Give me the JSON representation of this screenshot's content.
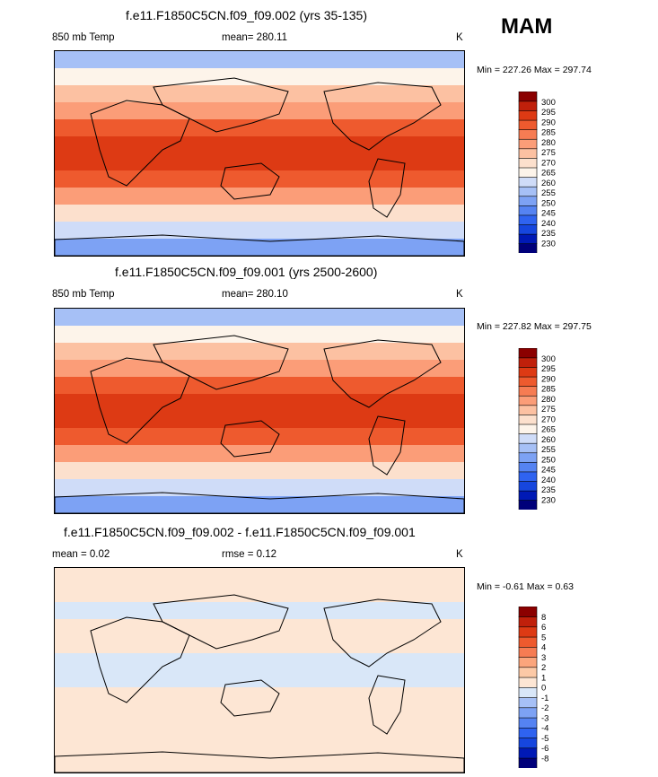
{
  "season": "MAM",
  "colors": {
    "continent_outline": "#000000",
    "missing": "#ffffff"
  },
  "panels": [
    {
      "title": "f.e11.F1850C5CN.f09_f09.002 (yrs 35-135)",
      "left_label": "850 mb Temp",
      "center_label": "mean= 280.11",
      "units": "K",
      "minmax": "Min = 227.26 Max = 297.74"
    },
    {
      "title": "f.e11.F1850C5CN.f09_f09.001 (yrs 2500-2600)",
      "left_label": "850 mb Temp",
      "center_label": "mean= 280.10",
      "units": "K",
      "minmax": "Min = 227.82 Max = 297.75"
    },
    {
      "title": "f.e11.F1850C5CN.f09_f09.002 - f.e11.F1850C5CN.f09_f09.001",
      "left_label": "mean =   0.02",
      "center_label": "rmse =   0.12",
      "units": "K",
      "minmax": "Min =  -0.61 Max =   0.63"
    }
  ],
  "chart_data": [
    {
      "type": "heatmap",
      "title": "f.e11.F1850C5CN.f09_f09.002 (yrs 35-135)",
      "field": "850 mb Temp",
      "units": "K",
      "mean": 280.11,
      "min": 227.26,
      "max": 297.74,
      "levels": [
        230,
        235,
        240,
        245,
        250,
        255,
        260,
        265,
        270,
        275,
        280,
        285,
        290,
        295,
        300
      ],
      "colorbar_colors": [
        "#00007a",
        "#0019b5",
        "#1646de",
        "#2f63f0",
        "#5583f2",
        "#7da2f4",
        "#a6c0f6",
        "#cfdcf8",
        "#fdf4ea",
        "#fce0cd",
        "#fcc1a2",
        "#fb9d78",
        "#f67c53",
        "#ee5a2e",
        "#dd3a14",
        "#c0200b",
        "#8b0000"
      ],
      "zonal_mean_profile": {
        "lat": [
          90,
          75,
          60,
          45,
          30,
          15,
          0,
          -15,
          -30,
          -45,
          -60,
          -75,
          -90
        ],
        "value": [
          252,
          257,
          266,
          275,
          284,
          289,
          291,
          289,
          283,
          273,
          263,
          250,
          245
        ]
      }
    },
    {
      "type": "heatmap",
      "title": "f.e11.F1850C5CN.f09_f09.001 (yrs 2500-2600)",
      "field": "850 mb Temp",
      "units": "K",
      "mean": 280.1,
      "min": 227.82,
      "max": 297.75,
      "levels": [
        230,
        235,
        240,
        245,
        250,
        255,
        260,
        265,
        270,
        275,
        280,
        285,
        290,
        295,
        300
      ],
      "colorbar_colors": [
        "#00007a",
        "#0019b5",
        "#1646de",
        "#2f63f0",
        "#5583f2",
        "#7da2f4",
        "#a6c0f6",
        "#cfdcf8",
        "#fdf4ea",
        "#fce0cd",
        "#fcc1a2",
        "#fb9d78",
        "#f67c53",
        "#ee5a2e",
        "#dd3a14",
        "#c0200b",
        "#8b0000"
      ],
      "zonal_mean_profile": {
        "lat": [
          90,
          75,
          60,
          45,
          30,
          15,
          0,
          -15,
          -30,
          -45,
          -60,
          -75,
          -90
        ],
        "value": [
          252,
          257,
          266,
          275,
          284,
          289,
          291,
          289,
          283,
          273,
          263,
          250,
          245
        ]
      }
    },
    {
      "type": "heatmap",
      "title": "f.e11.F1850C5CN.f09_f09.002 - f.e11.F1850C5CN.f09_f09.001",
      "field": "difference",
      "units": "K",
      "mean": 0.02,
      "rmse": 0.12,
      "min": -0.61,
      "max": 0.63,
      "levels": [
        -8,
        -6,
        -5,
        -4,
        -3,
        -2,
        -1,
        0,
        1,
        2,
        3,
        4,
        5,
        6,
        8
      ],
      "colorbar_colors": [
        "#00007a",
        "#0019b5",
        "#1646de",
        "#2f63f0",
        "#5583f2",
        "#7da2f4",
        "#a6c0f6",
        "#d9e7f8",
        "#fde6d4",
        "#fcc9a6",
        "#fba57c",
        "#f67c53",
        "#ee5a2e",
        "#dd3a14",
        "#c0200b",
        "#8b0000"
      ],
      "zonal_mean_profile": {
        "lat": [
          90,
          75,
          60,
          45,
          30,
          15,
          0,
          -15,
          -30,
          -45,
          -60,
          -75,
          -90
        ],
        "value": [
          0.2,
          0.3,
          0.1,
          -0.2,
          0.3,
          -0.3,
          0.2,
          -0.3,
          0.3,
          -0.2,
          0.2,
          0.1,
          0.2
        ]
      }
    }
  ]
}
